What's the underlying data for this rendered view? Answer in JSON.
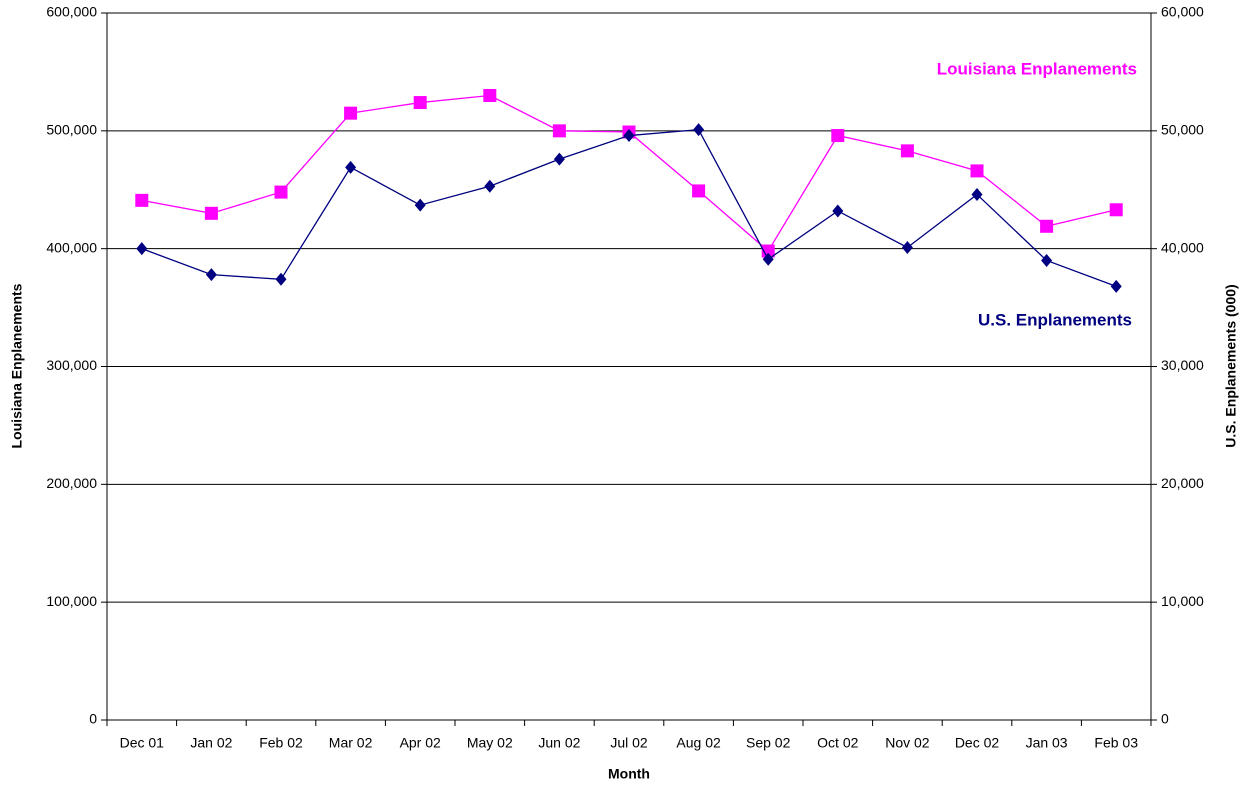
{
  "chart_data": {
    "type": "line",
    "xlabel": "Month",
    "ylabel": "Louisiana Enplanements",
    "y2label": "U.S. Enplanements (000)",
    "categories": [
      "Dec 01",
      "Jan 02",
      "Feb 02",
      "Mar 02",
      "Apr 02",
      "May 02",
      "Jun 02",
      "Jul 02",
      "Aug 02",
      "Sep 02",
      "Oct 02",
      "Nov 02",
      "Dec 02",
      "Jan 03",
      "Feb 03"
    ],
    "series": [
      {
        "name": "Louisiana Enplanements",
        "color": "#ff00ff",
        "marker": "square",
        "axis": "y",
        "values": [
          441000,
          430000,
          448000,
          515000,
          524000,
          530000,
          500000,
          499000,
          449000,
          398000,
          496000,
          483000,
          466000,
          419000,
          433000
        ]
      },
      {
        "name": "U.S. Enplanements",
        "color": "#000080",
        "marker": "diamond",
        "axis": "y2",
        "values": [
          40000,
          37800,
          37400,
          46900,
          43700,
          45300,
          47600,
          49600,
          50100,
          39100,
          43200,
          40100,
          44600,
          39000,
          36800
        ]
      }
    ],
    "ylim": [
      0,
      600000
    ],
    "yticks": [
      0,
      {
        "value": 100000,
        "label": "100,000"
      },
      {
        "value": 200000,
        "label": "200,000"
      },
      {
        "value": 300000,
        "label": "300,000"
      },
      {
        "value": 400000,
        "label": "400,000"
      },
      {
        "value": 500000,
        "label": "500,000"
      },
      {
        "value": 600000,
        "label": "600,000"
      }
    ],
    "y2lim": [
      0,
      60000
    ],
    "y2ticks": [
      0,
      {
        "value": 10000,
        "label": "10,000"
      },
      {
        "value": 20000,
        "label": "20,000"
      },
      {
        "value": 30000,
        "label": "30,000"
      },
      {
        "value": 40000,
        "label": "40,000"
      },
      {
        "value": 50000,
        "label": "50,000"
      },
      {
        "value": 60000,
        "label": "60,000"
      }
    ],
    "grid": true
  }
}
